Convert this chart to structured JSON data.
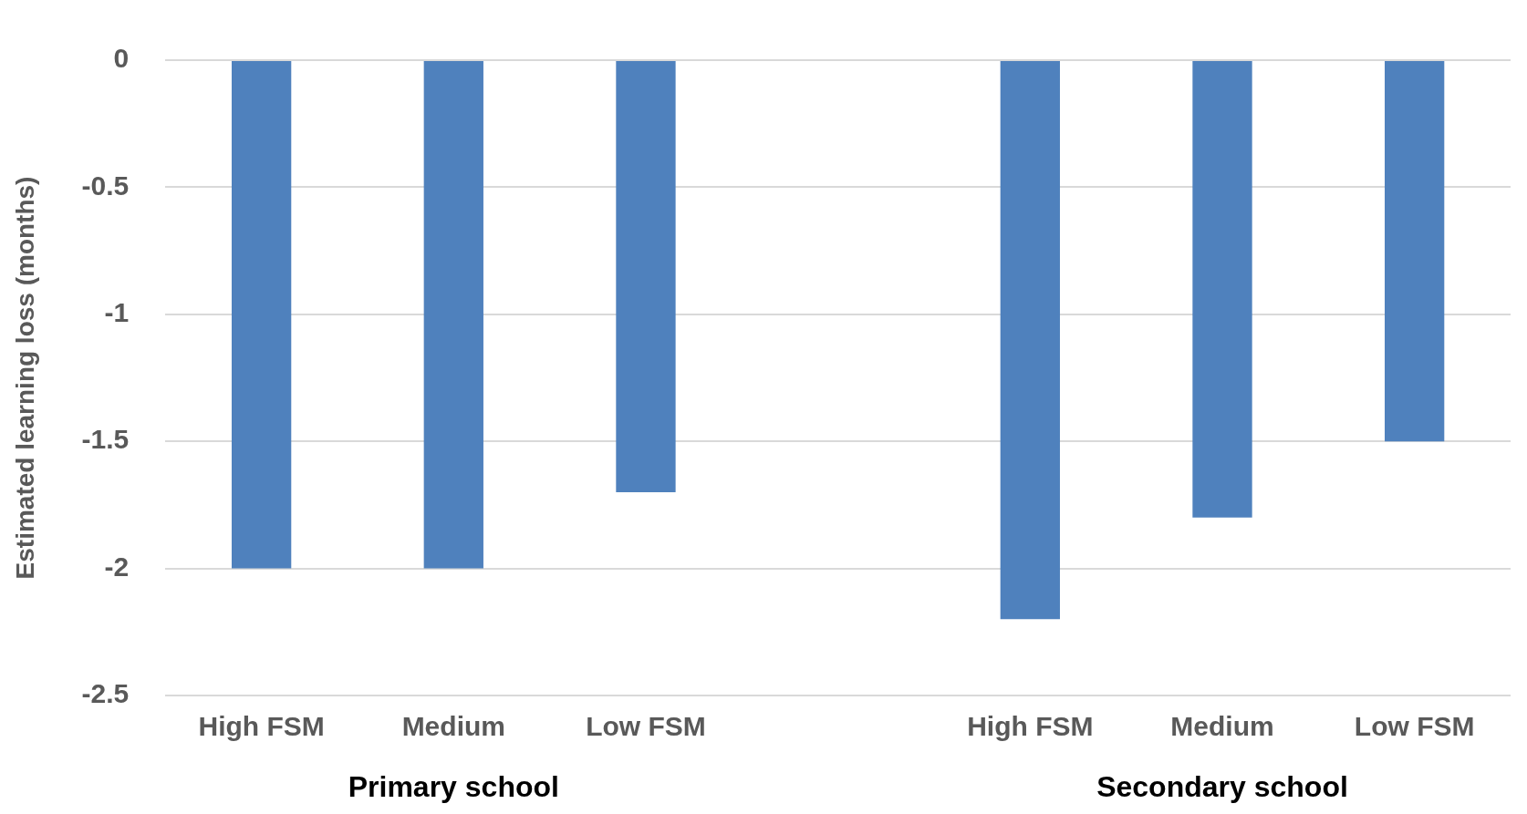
{
  "chart_data": {
    "type": "bar",
    "ylabel": "Estimated learning loss (months)",
    "categories": [
      "High FSM",
      "Medium",
      "Low FSM",
      null,
      "High FSM",
      "Medium",
      "Low FSM"
    ],
    "values": [
      -2,
      -2,
      -1.7,
      null,
      -2.2,
      -1.8,
      -1.5
    ],
    "color": "#4f81bd",
    "ylim": [
      -2.5,
      0
    ],
    "yticks": [
      -2.5,
      -2,
      -1.5,
      -1,
      -0.5,
      0
    ],
    "grid": "y",
    "legend": false,
    "annotations": [
      "Primary school",
      "Secondary school"
    ]
  }
}
